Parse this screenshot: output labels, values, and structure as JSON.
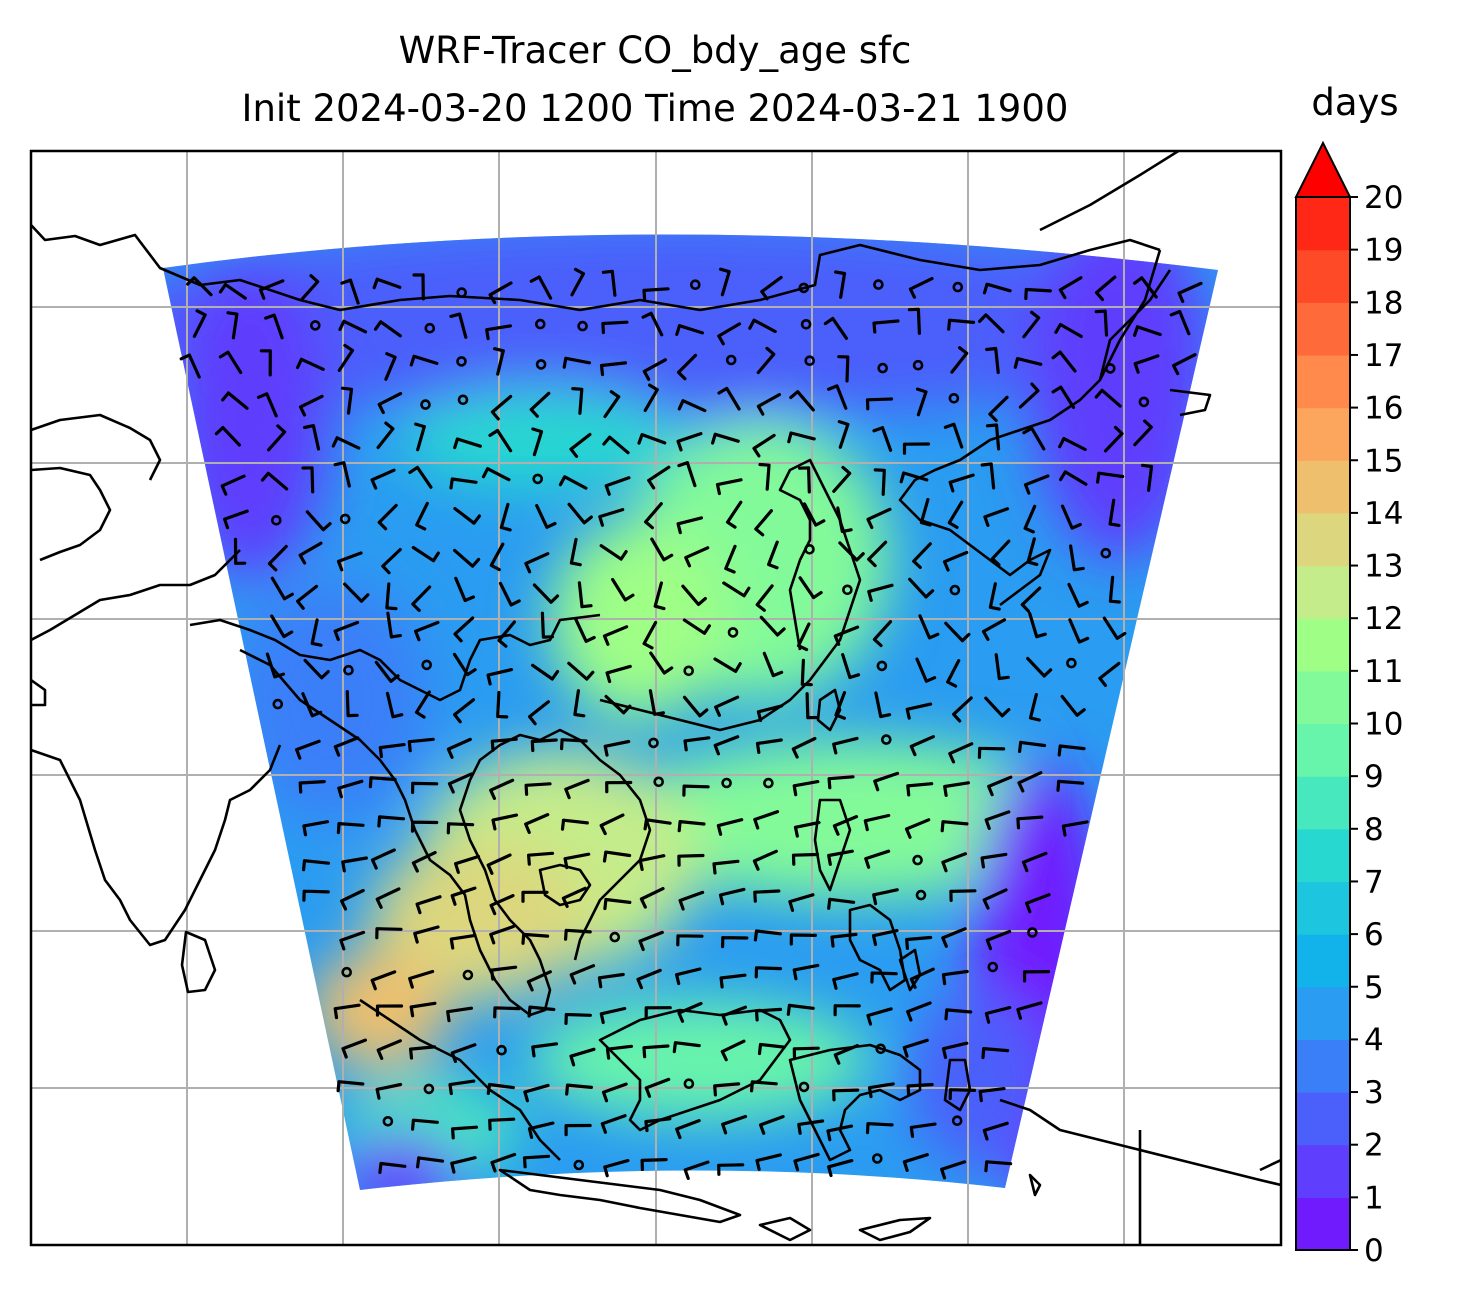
{
  "title": {
    "line1": "WRF-Tracer CO_bdy_age sfc",
    "line2": "Init 2024-03-20 1200 Time 2024-03-21 1900"
  },
  "colorbar": {
    "label": "days",
    "ticks": [
      "0",
      "1",
      "2",
      "3",
      "4",
      "5",
      "6",
      "7",
      "8",
      "9",
      "10",
      "11",
      "12",
      "13",
      "14",
      "15",
      "16",
      "17",
      "18",
      "19",
      "20"
    ],
    "extend": "max",
    "colors": [
      "#6f1bfe",
      "#5f3efd",
      "#4b5ffb",
      "#3b7ff8",
      "#2a9cf1",
      "#12b3ea",
      "#1ec5df",
      "#27d8d0",
      "#47e8bd",
      "#67f4ab",
      "#83fa99",
      "#9ffe86",
      "#c5ec8a",
      "#dcd77e",
      "#eec06d",
      "#fca55c",
      "#ff8a4b",
      "#ff6a3a",
      "#ff4a28",
      "#ff2715",
      "#fe0000"
    ]
  },
  "map": {
    "field": "CO_bdy_age",
    "units": "days",
    "gridlines": true,
    "features": [
      "coastlines",
      "wind barbs",
      "calm circles"
    ]
  }
}
